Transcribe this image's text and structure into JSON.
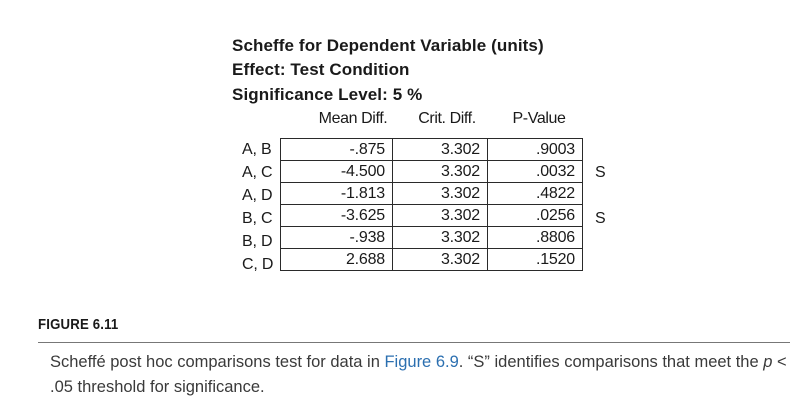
{
  "output": {
    "title": "Scheffe for Dependent Variable (units)",
    "effect": "Effect: Test Condition",
    "significance": "Significance Level: 5 %",
    "columns": [
      "Mean Diff.",
      "Crit. Diff.",
      "P-Value"
    ],
    "rows": [
      {
        "label": "A, B",
        "mean_diff": "-.875",
        "crit_diff": "3.302",
        "p_value": ".9003",
        "flag": ""
      },
      {
        "label": "A, C",
        "mean_diff": "-4.500",
        "crit_diff": "3.302",
        "p_value": ".0032",
        "flag": "S"
      },
      {
        "label": "A, D",
        "mean_diff": "-1.813",
        "crit_diff": "3.302",
        "p_value": ".4822",
        "flag": ""
      },
      {
        "label": "B, C",
        "mean_diff": "-3.625",
        "crit_diff": "3.302",
        "p_value": ".0256",
        "flag": "S"
      },
      {
        "label": "B, D",
        "mean_diff": "-.938",
        "crit_diff": "3.302",
        "p_value": ".8806",
        "flag": ""
      },
      {
        "label": "C, D",
        "mean_diff": "2.688",
        "crit_diff": "3.302",
        "p_value": ".1520",
        "flag": ""
      }
    ]
  },
  "figure": {
    "label": "FIGURE 6.11",
    "caption_part1": "Scheffé post hoc comparisons test for data in ",
    "caption_link": "Figure 6.9",
    "caption_part2": ". “S” identifies comparisons that meet the ",
    "caption_p": "p",
    "caption_part3": " < .05 threshold for significance.",
    "link_color": "#2b6fb0"
  }
}
